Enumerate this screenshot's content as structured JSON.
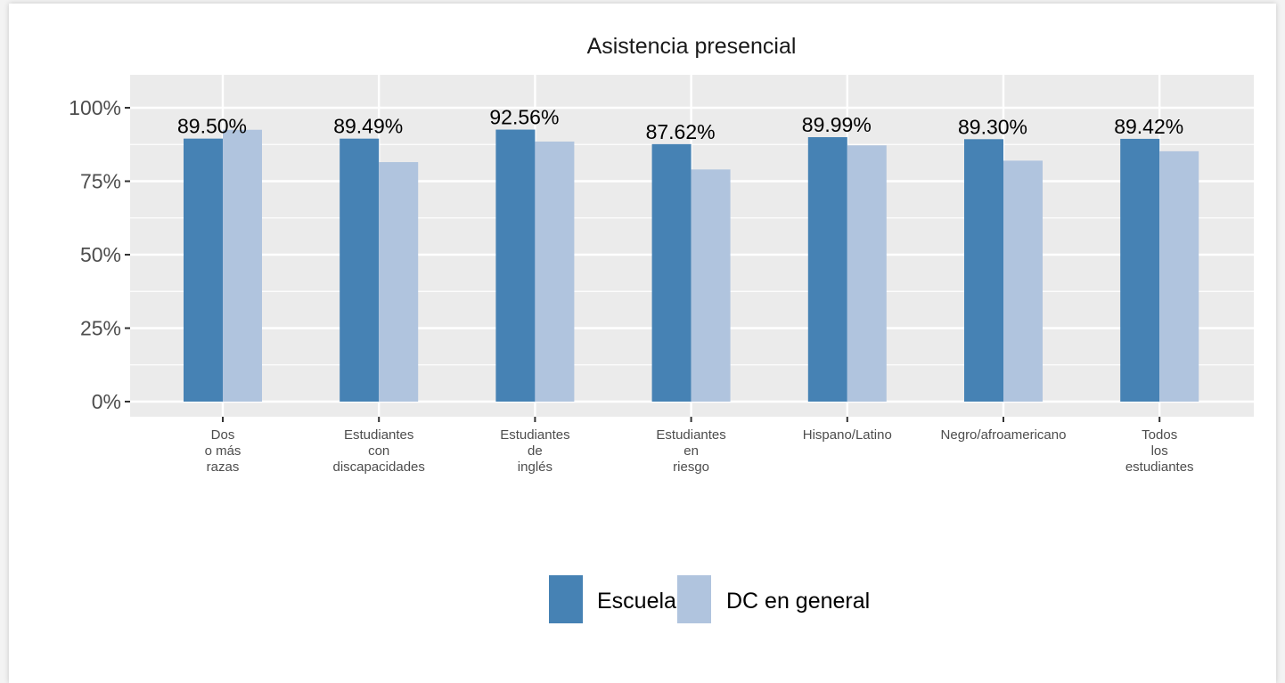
{
  "chart_data": {
    "type": "bar",
    "title": "Asistencia presencial",
    "xlabel": "",
    "ylabel": "",
    "ylim": [
      0,
      1.0
    ],
    "yticks": [
      0,
      0.25,
      0.5,
      0.75,
      1.0
    ],
    "ytick_labels": [
      "0%",
      "25%",
      "50%",
      "75%",
      "100%"
    ],
    "categories": [
      [
        "Dos",
        "o más",
        "razas"
      ],
      [
        "Estudiantes",
        "con",
        "discapacidades"
      ],
      [
        "Estudiantes",
        "de",
        "inglés"
      ],
      [
        "Estudiantes",
        "en",
        "riesgo"
      ],
      [
        "Hispano/Latino"
      ],
      [
        "Negro/afroamericano"
      ],
      [
        "Todos",
        "los",
        "estudiantes"
      ]
    ],
    "series": [
      {
        "name": "Escuela",
        "color": "#4682b4",
        "values": [
          0.895,
          0.8949,
          0.9256,
          0.8762,
          0.8999,
          0.893,
          0.8942
        ],
        "labels": [
          "89.50%",
          "89.49%",
          "92.56%",
          "87.62%",
          "89.99%",
          "89.30%",
          "89.42%"
        ]
      },
      {
        "name": "DC en general",
        "color": "#b0c4de",
        "values": [
          0.925,
          0.815,
          0.885,
          0.79,
          0.872,
          0.82,
          0.852
        ]
      }
    ],
    "grid": true,
    "panel_background": "#ebebeb",
    "legend_position": "bottom"
  }
}
